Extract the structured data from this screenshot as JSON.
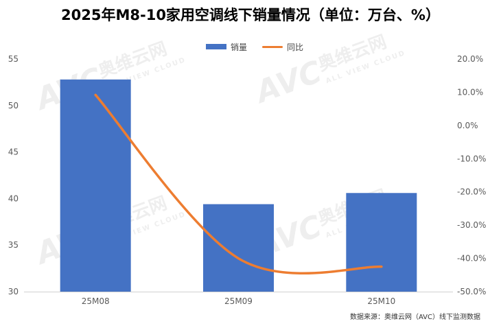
{
  "chart_data": {
    "type": "bar",
    "title": "2025年M8-10家用空调线下销量情况（单位：万台、%）",
    "categories": [
      "25M08",
      "25M09",
      "25M10"
    ],
    "series": [
      {
        "name": "销量",
        "type": "bar",
        "axis": "left",
        "values": [
          52.8,
          39.4,
          40.6
        ]
      },
      {
        "name": "同比",
        "type": "line",
        "axis": "right",
        "values": [
          9.2,
          -40.0,
          -42.5
        ],
        "unit": "%"
      }
    ],
    "y_left": {
      "min": 30,
      "max": 55,
      "ticks": [
        30,
        35,
        40,
        45,
        50,
        55
      ]
    },
    "y_right": {
      "min": -50,
      "max": 20,
      "ticks": [
        "20.0%",
        "10.0%",
        "0.0%",
        "-10.0%",
        "-20.0%",
        "-30.0%",
        "-40.0%",
        "-50.0%"
      ]
    },
    "legend_position": "top-center",
    "grid": false,
    "source": "数据来源：奥维云网（AVC）线下监测数据",
    "colors": {
      "bar": "#4472C4",
      "line": "#ED7D31"
    }
  },
  "watermark": {
    "logo": "AVC",
    "cn": "奥维云网",
    "en": "ALL VIEW CLOUD"
  }
}
